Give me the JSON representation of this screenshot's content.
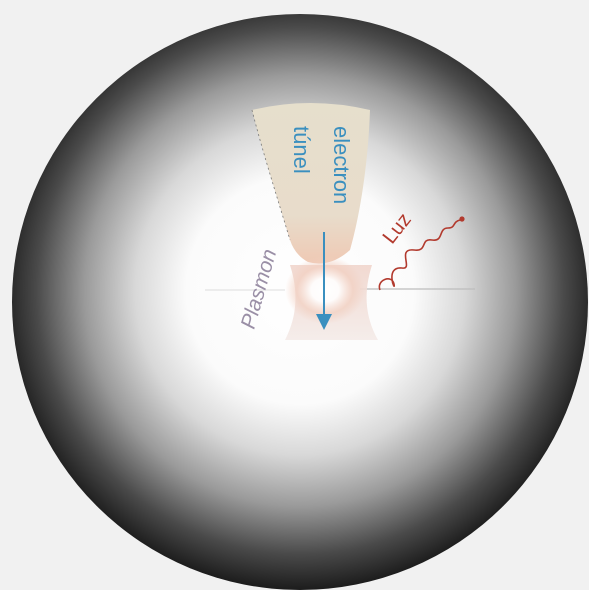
{
  "labels": {
    "tunnel_line1": "electron",
    "tunnel_line2": "túnel",
    "plasmon": "Plasmon",
    "light": "Luz"
  },
  "colors": {
    "background": "#f1f1f1",
    "sphere_edge": "#1a1a1a",
    "tip": "#e2dac6",
    "arrow": "#3a8fbf",
    "tunnel_text": "#3a8fbf",
    "plasmon_text": "#9a8fa6",
    "plasmon_glow": "#f2cfc0",
    "light_wave": "#b23a2e"
  }
}
